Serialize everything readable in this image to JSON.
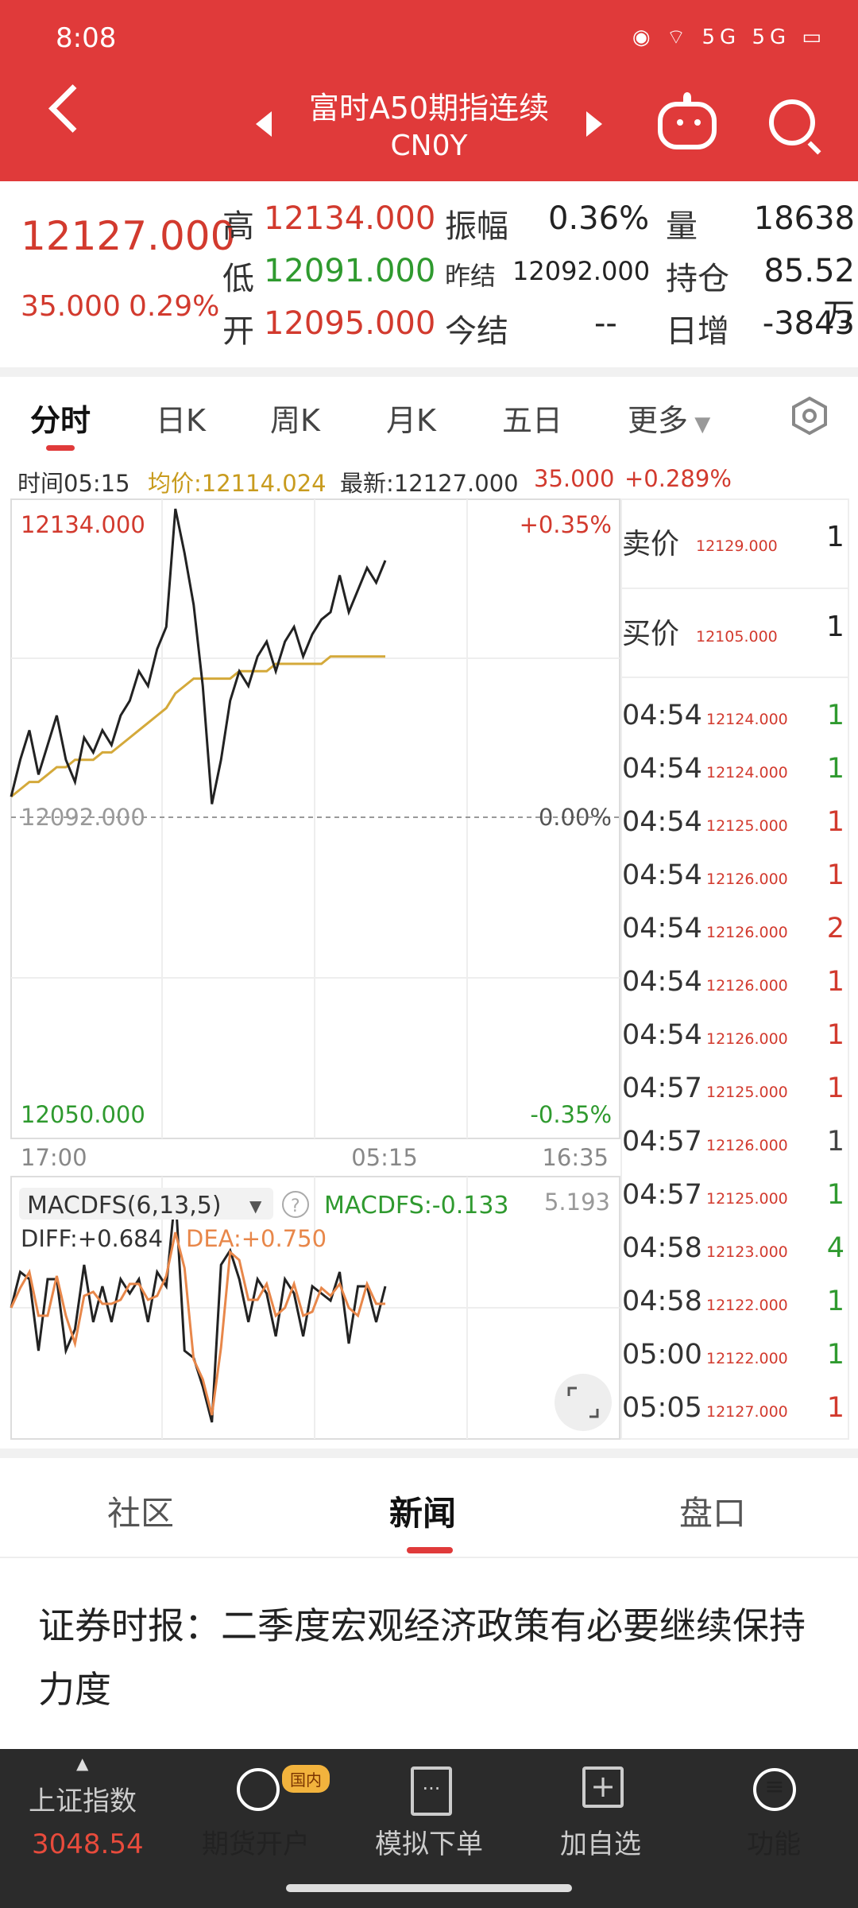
{
  "status_bar": {
    "time": "8:08",
    "icons": "◉ ⌔ 5G 5G ▭"
  },
  "header": {
    "title": "富时A50期指连续",
    "subtitle": "CN0Y"
  },
  "quote": {
    "last": "12127.000",
    "change": "35.000",
    "change_pct": "0.29%",
    "high_label": "高",
    "high": "12134.000",
    "low_label": "低",
    "low": "12091.000",
    "open_label": "开",
    "open": "12095.000",
    "amp_label": "振幅",
    "amp": "0.36%",
    "prev_settle_label": "昨结",
    "prev_settle": "12092.000",
    "settle_label": "今结",
    "settle": "--",
    "vol_label": "量",
    "vol": "18638",
    "oi_label": "持仓",
    "oi": "85.52万",
    "oi_chg_label": "日增",
    "oi_chg": "-3843"
  },
  "tabs": [
    "分时",
    "日K",
    "周K",
    "月K",
    "五日",
    "更多"
  ],
  "info_bar": {
    "time": "时间05:15",
    "avg": "均价:12114.024",
    "latest": "最新:12127.000",
    "chg": "35.000",
    "pct": "+0.289%"
  },
  "chart_data": {
    "type": "line",
    "y_top": "12134.000",
    "y_mid": "12092.000",
    "y_bottom": "12050.000",
    "pct_top": "+0.35%",
    "pct_mid": "0.00%",
    "pct_bottom": "-0.35%",
    "x_labels": [
      "17:00",
      "05:15",
      "16:35"
    ],
    "ylim": [
      12050,
      12134
    ],
    "price": [
      12095,
      12100,
      12104,
      12098,
      12102,
      12106,
      12100,
      12097,
      12103,
      12101,
      12104,
      12102,
      12106,
      12108,
      12112,
      12110,
      12115,
      12118,
      12134,
      12128,
      12121,
      12110,
      12094,
      12100,
      12108,
      12112,
      12110,
      12114,
      12116,
      12112,
      12116,
      12118,
      12114,
      12117,
      12119,
      12120,
      12125,
      12120,
      12123,
      12126,
      12124,
      12127
    ],
    "avg": [
      12095,
      12096,
      12097,
      12097,
      12098,
      12099,
      12099,
      12100,
      12100,
      12100,
      12101,
      12101,
      12102,
      12103,
      12104,
      12105,
      12106,
      12107,
      12109,
      12110,
      12111,
      12111,
      12111,
      12111,
      12111,
      12112,
      12112,
      12112,
      12112,
      12113,
      12113,
      12113,
      12113,
      12113,
      12113,
      12114,
      12114,
      12114,
      12114,
      12114,
      12114,
      12114
    ]
  },
  "order_book": {
    "sell_label": "卖价",
    "sell_price": "12129.000",
    "sell_vol": "1",
    "buy_label": "买价",
    "buy_price": "12105.000",
    "buy_vol": "1"
  },
  "trades": [
    {
      "time": "04:54",
      "price": "12124.000",
      "vol": "1",
      "dir": "green"
    },
    {
      "time": "04:54",
      "price": "12124.000",
      "vol": "1",
      "dir": "green"
    },
    {
      "time": "04:54",
      "price": "12125.000",
      "vol": "1",
      "dir": "red"
    },
    {
      "time": "04:54",
      "price": "12126.000",
      "vol": "1",
      "dir": "red"
    },
    {
      "time": "04:54",
      "price": "12126.000",
      "vol": "2",
      "dir": "red"
    },
    {
      "time": "04:54",
      "price": "12126.000",
      "vol": "1",
      "dir": "red"
    },
    {
      "time": "04:54",
      "price": "12126.000",
      "vol": "1",
      "dir": "red"
    },
    {
      "time": "04:57",
      "price": "12125.000",
      "vol": "1",
      "dir": "red"
    },
    {
      "time": "04:57",
      "price": "12126.000",
      "vol": "1",
      "dir": "gray"
    },
    {
      "time": "04:57",
      "price": "12125.000",
      "vol": "1",
      "dir": "green"
    },
    {
      "time": "04:58",
      "price": "12123.000",
      "vol": "4",
      "dir": "green"
    },
    {
      "time": "04:58",
      "price": "12122.000",
      "vol": "1",
      "dir": "green"
    },
    {
      "time": "05:00",
      "price": "12122.000",
      "vol": "1",
      "dir": "green"
    },
    {
      "time": "05:05",
      "price": "12127.000",
      "vol": "1",
      "dir": "red"
    }
  ],
  "macd": {
    "name": "MACDFS(6,13,5)",
    "macdfs": "MACDFS:-0.133",
    "max": "5.193",
    "diff": "DIFF:+0.684",
    "dea": "DEA:+0.750"
  },
  "bottom_tabs": [
    "社区",
    "新闻",
    "盘口"
  ],
  "news": {
    "headline": "证券时报：二季度宏观经济政策有必要继续保持力度"
  },
  "nav": {
    "index_name": "上证指数",
    "index_value": "3048.54",
    "badge": "国内",
    "items": [
      "期货开户",
      "模拟下单",
      "加自选",
      "功能"
    ]
  }
}
